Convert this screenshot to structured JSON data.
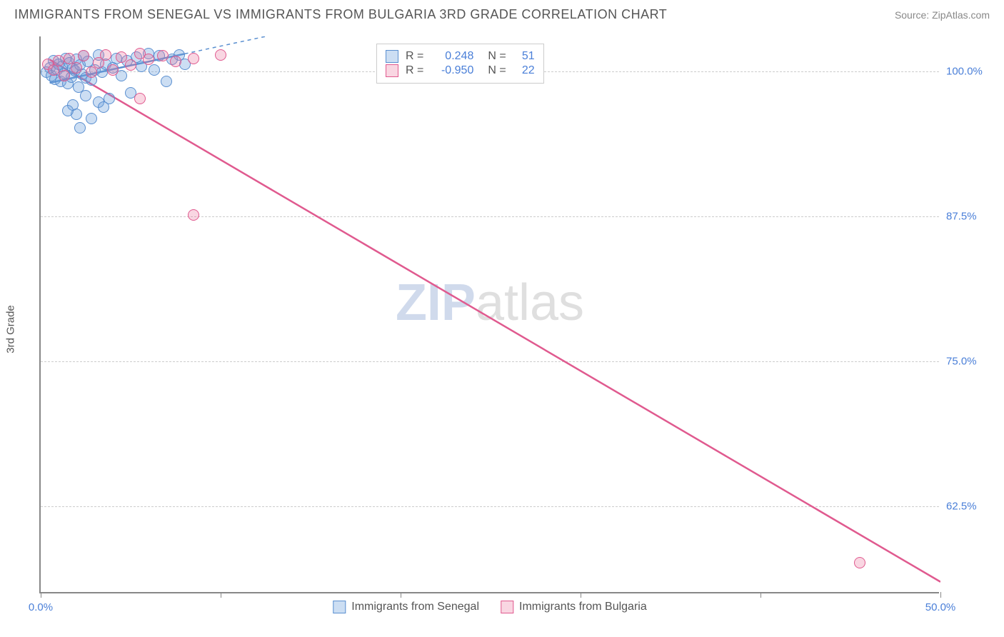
{
  "header": {
    "title": "IMMIGRANTS FROM SENEGAL VS IMMIGRANTS FROM BULGARIA 3RD GRADE CORRELATION CHART",
    "source": "Source: ZipAtlas.com"
  },
  "chart": {
    "type": "scatter",
    "ylabel": "3rd Grade",
    "xlim": [
      0,
      50
    ],
    "ylim": [
      55,
      103
    ],
    "xticks": [
      0,
      10,
      20,
      30,
      40,
      50
    ],
    "xtick_labels": {
      "0": "0.0%",
      "50": "50.0%"
    },
    "yticks": [
      62.5,
      75.0,
      87.5,
      100.0
    ],
    "ytick_labels": [
      "62.5%",
      "75.0%",
      "87.5%",
      "100.0%"
    ],
    "grid_color": "#cccccc",
    "axis_color": "#888888",
    "background_color": "#ffffff",
    "label_color": "#4a7fd8",
    "text_color": "#555555",
    "point_radius": 8,
    "series": [
      {
        "name": "Immigrants from Senegal",
        "fill": "rgba(108,160,220,0.35)",
        "stroke": "#5a8fd0",
        "r_value": "0.248",
        "n_value": "51",
        "trend": {
          "x1": 0.5,
          "y1": 99.0,
          "x2": 8.0,
          "y2": 101.5,
          "dash_extend_x": 20,
          "width": 2.5
        },
        "points": [
          [
            0.3,
            99.8
          ],
          [
            0.5,
            100.2
          ],
          [
            0.6,
            99.5
          ],
          [
            0.7,
            100.8
          ],
          [
            0.8,
            99.2
          ],
          [
            0.9,
            100.0
          ],
          [
            1.0,
            100.5
          ],
          [
            1.1,
            99.0
          ],
          [
            1.2,
            100.3
          ],
          [
            1.3,
            99.7
          ],
          [
            1.4,
            101.0
          ],
          [
            1.5,
            98.8
          ],
          [
            1.6,
            100.6
          ],
          [
            1.7,
            99.4
          ],
          [
            1.8,
            100.1
          ],
          [
            1.9,
            99.9
          ],
          [
            2.0,
            100.9
          ],
          [
            2.1,
            98.5
          ],
          [
            2.2,
            100.4
          ],
          [
            2.3,
            99.6
          ],
          [
            2.4,
            101.2
          ],
          [
            2.5,
            99.3
          ],
          [
            2.6,
            100.7
          ],
          [
            2.8,
            99.1
          ],
          [
            3.0,
            100.0
          ],
          [
            3.2,
            101.3
          ],
          [
            3.4,
            99.8
          ],
          [
            3.6,
            100.5
          ],
          [
            3.8,
            97.5
          ],
          [
            4.0,
            100.2
          ],
          [
            4.2,
            101.0
          ],
          [
            4.5,
            99.5
          ],
          [
            4.8,
            100.8
          ],
          [
            5.0,
            98.0
          ],
          [
            5.3,
            101.1
          ],
          [
            5.6,
            100.3
          ],
          [
            6.0,
            101.4
          ],
          [
            6.3,
            100.0
          ],
          [
            6.6,
            101.2
          ],
          [
            7.0,
            99.0
          ],
          [
            7.3,
            100.9
          ],
          [
            7.7,
            101.3
          ],
          [
            8.0,
            100.5
          ],
          [
            1.8,
            97.0
          ],
          [
            2.0,
            96.2
          ],
          [
            2.5,
            97.8
          ],
          [
            2.8,
            95.8
          ],
          [
            3.2,
            97.2
          ],
          [
            1.5,
            96.5
          ],
          [
            2.2,
            95.0
          ],
          [
            3.5,
            96.8
          ]
        ]
      },
      {
        "name": "Immigrants from Bulgaria",
        "fill": "rgba(235,120,160,0.30)",
        "stroke": "#e05a8f",
        "r_value": "-0.950",
        "n_value": "22",
        "trend": {
          "x1": 0.5,
          "y1": 101.0,
          "x2": 50.0,
          "y2": 56.0,
          "width": 2.5
        },
        "points": [
          [
            0.4,
            100.5
          ],
          [
            0.7,
            100.0
          ],
          [
            1.0,
            100.8
          ],
          [
            1.3,
            99.5
          ],
          [
            1.6,
            101.0
          ],
          [
            2.0,
            100.2
          ],
          [
            2.4,
            101.2
          ],
          [
            2.8,
            99.8
          ],
          [
            3.2,
            100.6
          ],
          [
            3.6,
            101.3
          ],
          [
            4.0,
            100.0
          ],
          [
            4.5,
            101.1
          ],
          [
            5.0,
            100.4
          ],
          [
            5.5,
            101.4
          ],
          [
            6.0,
            100.9
          ],
          [
            6.8,
            101.2
          ],
          [
            7.5,
            100.7
          ],
          [
            8.5,
            101.0
          ],
          [
            10.0,
            101.3
          ],
          [
            5.5,
            97.5
          ],
          [
            8.5,
            87.5
          ],
          [
            45.5,
            57.5
          ]
        ]
      }
    ],
    "legend_top": {
      "rows": [
        {
          "swatch_fill": "rgba(108,160,220,0.35)",
          "swatch_stroke": "#5a8fd0",
          "r": "0.248",
          "n": "51"
        },
        {
          "swatch_fill": "rgba(235,120,160,0.30)",
          "swatch_stroke": "#e05a8f",
          "r": "-0.950",
          "n": "22"
        }
      ],
      "r_label": "R =",
      "n_label": "N ="
    },
    "legend_bottom": [
      {
        "swatch_fill": "rgba(108,160,220,0.35)",
        "swatch_stroke": "#5a8fd0",
        "label": "Immigrants from Senegal"
      },
      {
        "swatch_fill": "rgba(235,120,160,0.30)",
        "swatch_stroke": "#e05a8f",
        "label": "Immigrants from Bulgaria"
      }
    ],
    "watermark": {
      "part1": "ZIP",
      "part2": "atlas"
    }
  }
}
